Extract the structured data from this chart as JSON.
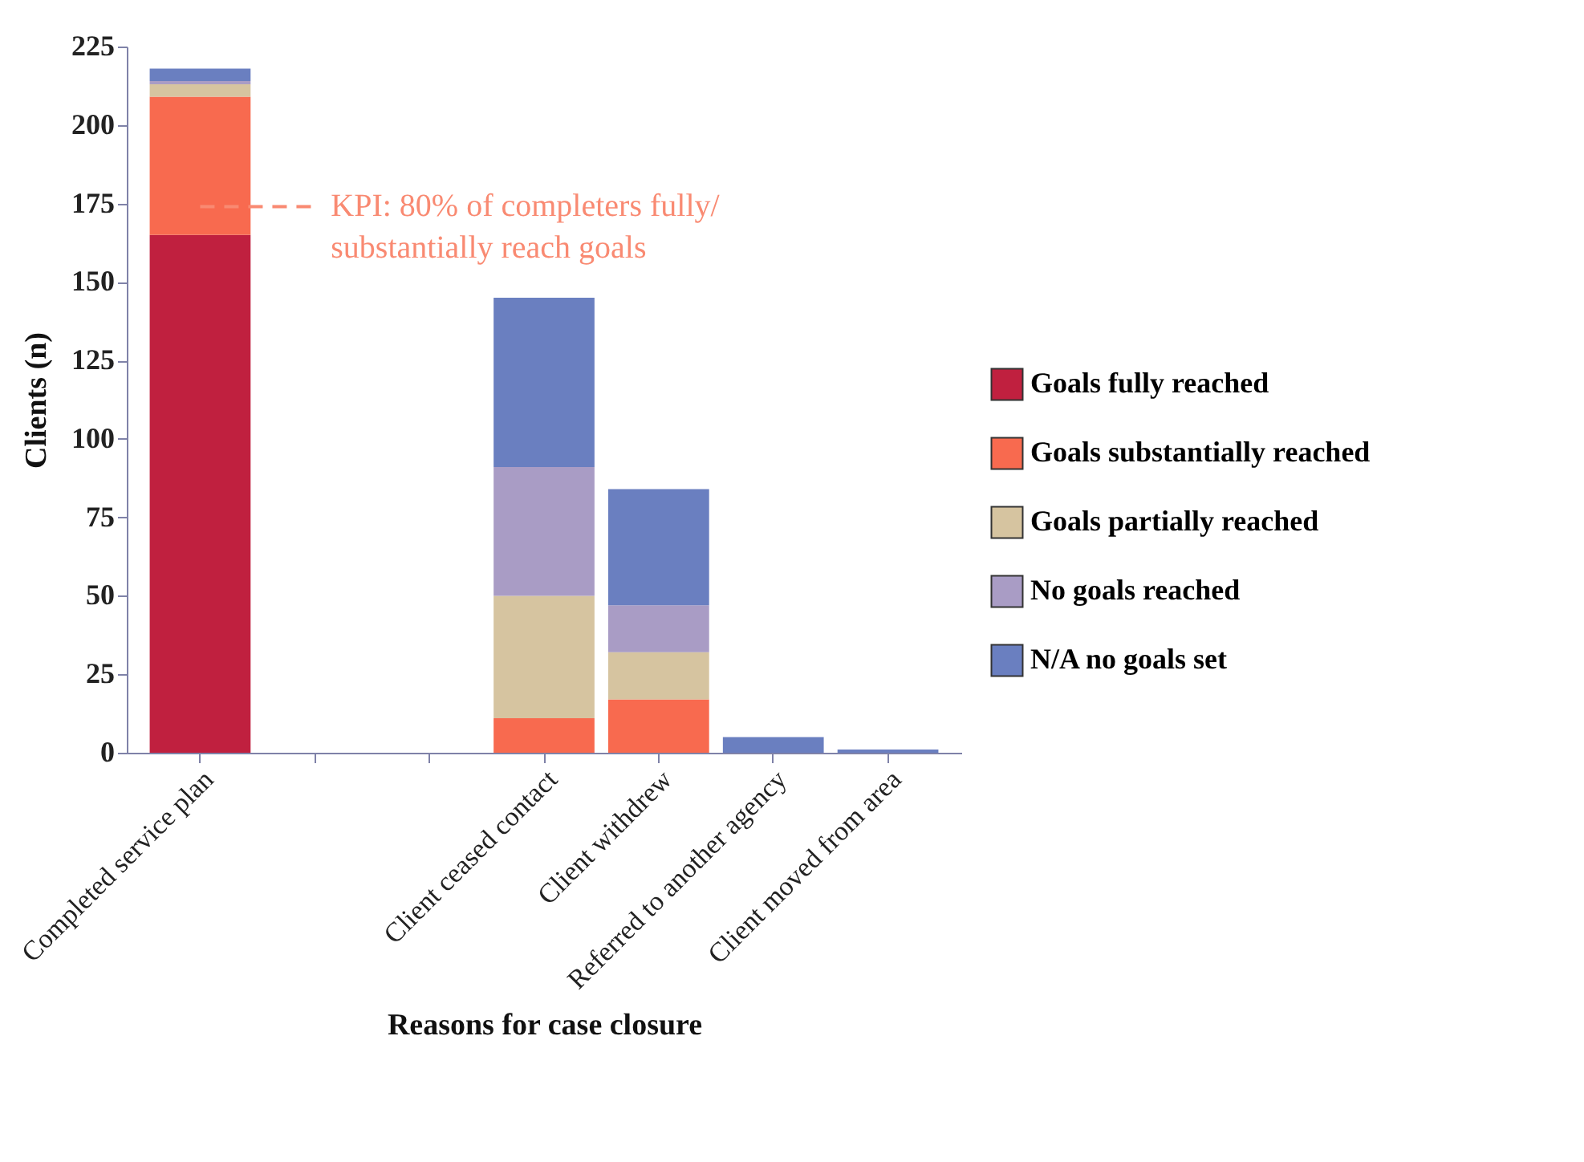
{
  "chart_data": {
    "type": "bar",
    "stacked": true,
    "xlabel": "Reasons for case closure",
    "ylabel": "Clients (n)",
    "categories": [
      "Completed service plan",
      null,
      null,
      "Client ceased contact",
      "Client withdrew",
      "Referred to another agency",
      "Client moved from area"
    ],
    "series": [
      {
        "name": "Goals fully reached",
        "color": "#c0203f",
        "values": [
          165,
          0,
          0,
          0,
          0,
          0,
          0
        ]
      },
      {
        "name": "Goals substantially reached",
        "color": "#f86a4f",
        "values": [
          44,
          0,
          0,
          11,
          17,
          0,
          0
        ]
      },
      {
        "name": "Goals partially reached",
        "color": "#d6c4a0",
        "values": [
          4,
          0,
          0,
          39,
          15,
          0,
          0
        ]
      },
      {
        "name": "No goals reached",
        "color": "#a99cc5",
        "values": [
          1,
          0,
          0,
          41,
          15,
          0,
          0
        ]
      },
      {
        "name": "N/A no goals set",
        "color": "#6a7fc0",
        "values": [
          4,
          0,
          0,
          54,
          37,
          5,
          1
        ]
      }
    ],
    "ylim": [
      0,
      225
    ],
    "yticks": [
      0,
      25,
      50,
      75,
      100,
      125,
      150,
      175,
      200,
      225
    ],
    "ref_lines": [
      {
        "axis": "y",
        "value": 174,
        "color": "#f98a72",
        "line_style": "dashed"
      }
    ],
    "annotations": [
      "KPI: 80% of completers fully/ substantially reach goals"
    ],
    "grid": false,
    "legend": "right"
  }
}
